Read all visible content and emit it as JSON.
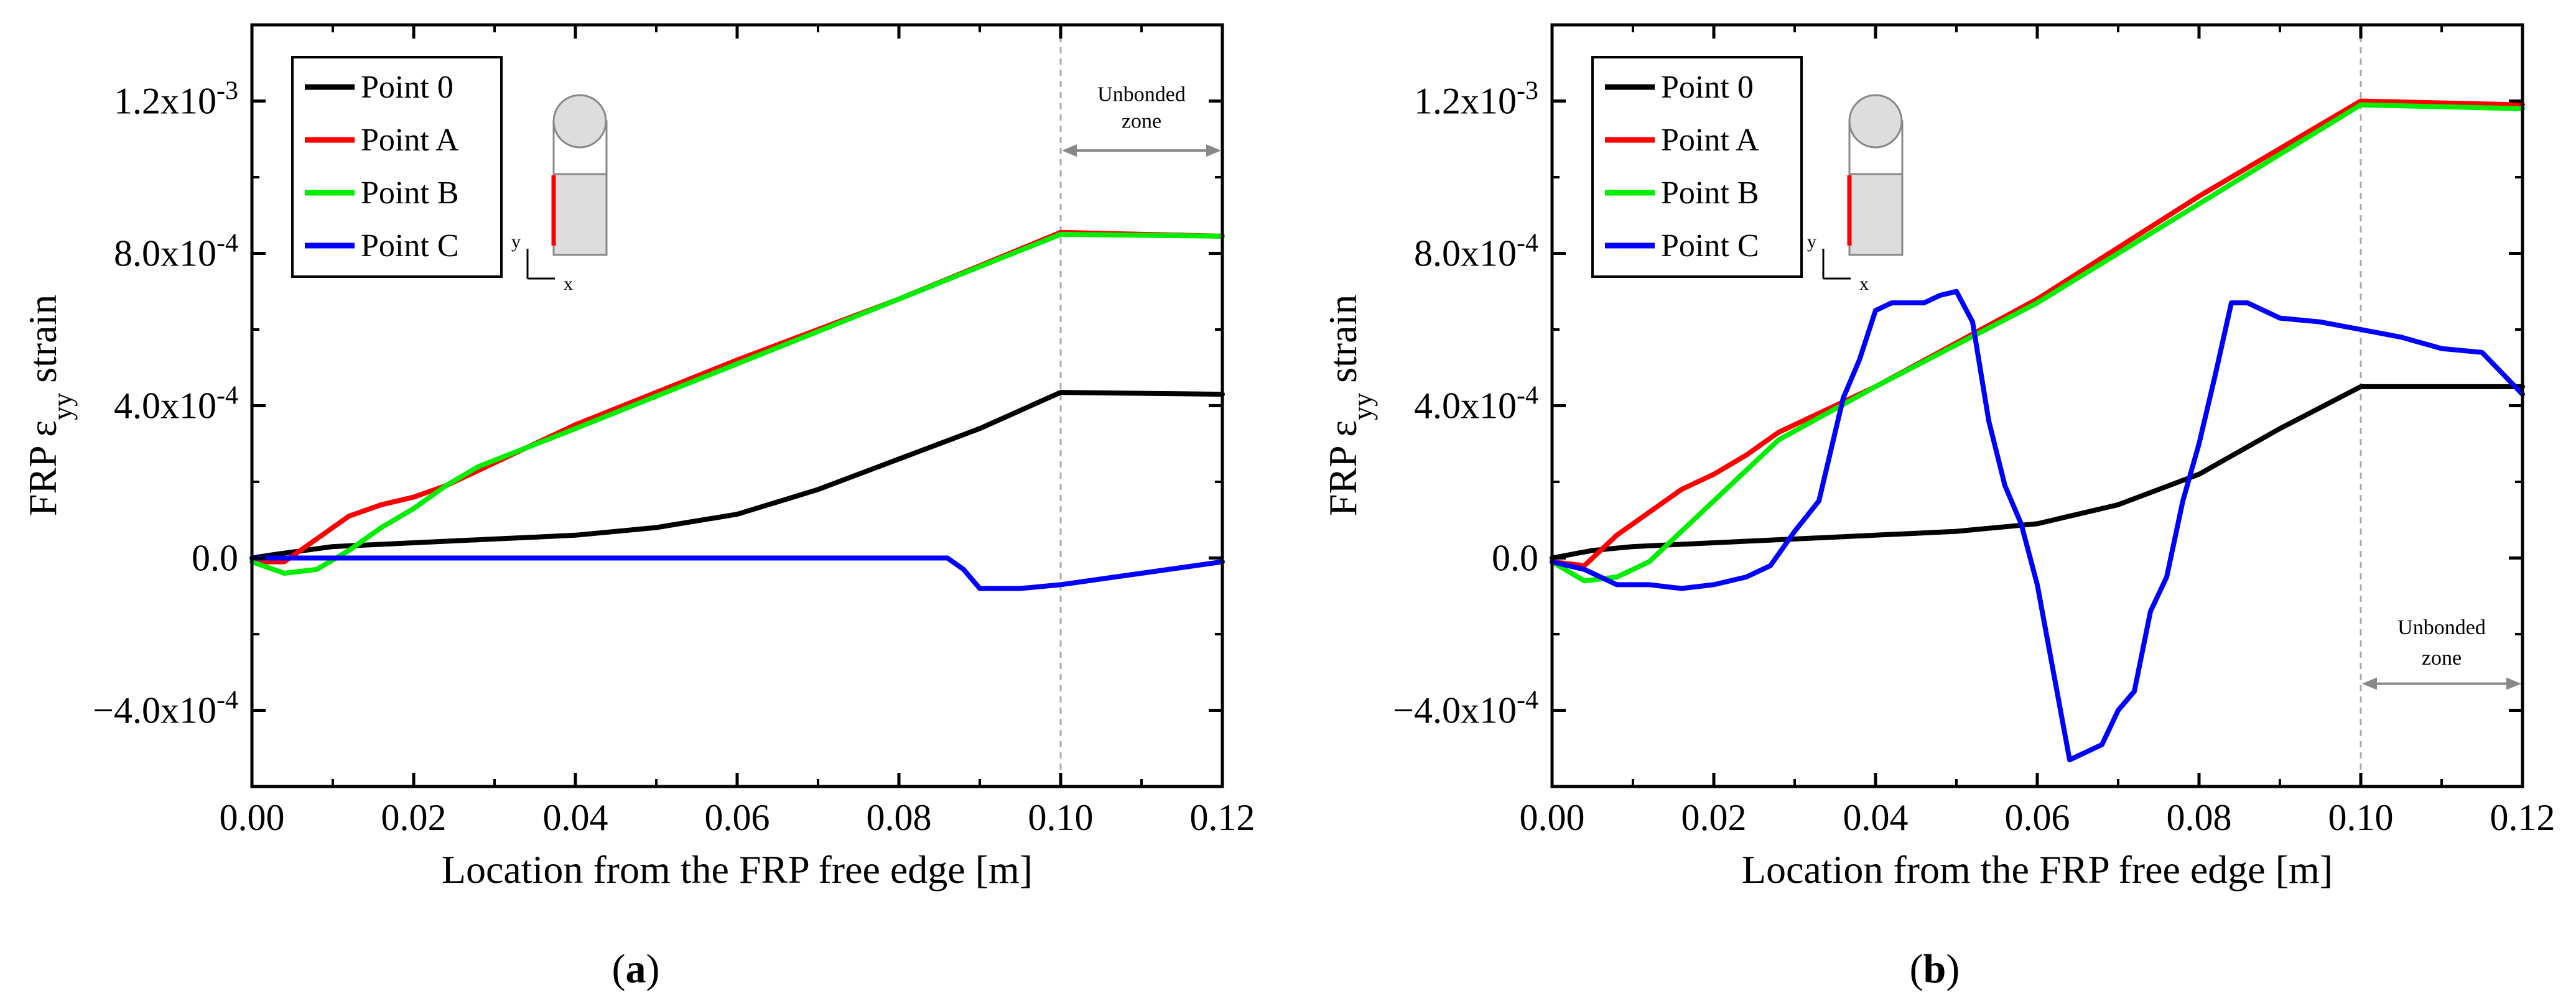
{
  "colors": {
    "point0": "#000000",
    "pointA": "#ff0000",
    "pointB": "#00ee00",
    "pointC": "#0000ff",
    "dashed": "#aaaaaa",
    "arrow": "#888888",
    "schematic_fill": "#dddddd"
  },
  "chart_data": [
    {
      "type": "line",
      "panel_label": "a",
      "xlabel": "Location from the FRP free edge [m]",
      "ylabel_prefix": "FRP ε",
      "ylabel_sub": "yy",
      "ylabel_suffix": " strain",
      "xlim": [
        0,
        0.12
      ],
      "ylim": [
        -0.0006,
        0.0014
      ],
      "xticks": [
        0.0,
        0.02,
        0.04,
        0.06,
        0.08,
        0.1,
        0.12
      ],
      "xtick_labels": [
        "0.00",
        "0.02",
        "0.04",
        "0.06",
        "0.08",
        "0.10",
        "0.12"
      ],
      "yticks": [
        -0.0004,
        0,
        0.0004,
        0.0008,
        0.0012
      ],
      "ytick_labels": [
        {
          "mant": "−4.0x10",
          "exp": "-4"
        },
        {
          "mant": "0.0",
          "exp": ""
        },
        {
          "mant": "4.0x10",
          "exp": "-4"
        },
        {
          "mant": "8.0x10",
          "exp": "-4"
        },
        {
          "mant": "1.2x10",
          "exp": "-3"
        }
      ],
      "vline_x": 0.1,
      "annotation": {
        "line1": "Unbonded",
        "line2": "zone",
        "x_from": 0.1,
        "x_to": 0.12,
        "y_text1": 0.0012,
        "y_text2": 0.00113,
        "y_arrow": 0.00107
      },
      "legend": [
        "Point 0",
        "Point A",
        "Point B",
        "Point C"
      ],
      "schematic": {
        "ax_y": "y",
        "ax_x": "x"
      },
      "series": [
        {
          "name": "Point 0",
          "key": "point0",
          "x": [
            0,
            0.003,
            0.01,
            0.02,
            0.03,
            0.04,
            0.05,
            0.06,
            0.07,
            0.08,
            0.09,
            0.1,
            0.12
          ],
          "y": [
            0,
            1e-05,
            3e-05,
            4e-05,
            5e-05,
            6e-05,
            8e-05,
            0.000115,
            0.00018,
            0.00026,
            0.00034,
            0.000435,
            0.00043
          ]
        },
        {
          "name": "Point A",
          "key": "pointA",
          "x": [
            0,
            0.004,
            0.008,
            0.012,
            0.016,
            0.02,
            0.024,
            0.028,
            0.04,
            0.06,
            0.08,
            0.1,
            0.12
          ],
          "y": [
            -1e-05,
            -1e-05,
            5e-05,
            0.00011,
            0.00014,
            0.00016,
            0.00019,
            0.00023,
            0.00035,
            0.00052,
            0.00068,
            0.000855,
            0.000845
          ]
        },
        {
          "name": "Point B",
          "key": "pointB",
          "x": [
            0,
            0.004,
            0.008,
            0.012,
            0.016,
            0.02,
            0.024,
            0.028,
            0.04,
            0.06,
            0.08,
            0.1,
            0.12
          ],
          "y": [
            -1e-05,
            -4e-05,
            -3e-05,
            2e-05,
            8e-05,
            0.00013,
            0.00019,
            0.00024,
            0.00034,
            0.00051,
            0.00068,
            0.00085,
            0.000845
          ]
        },
        {
          "name": "Point C",
          "key": "pointC",
          "x": [
            0,
            0.02,
            0.04,
            0.06,
            0.08,
            0.086,
            0.088,
            0.09,
            0.095,
            0.1,
            0.11,
            0.12
          ],
          "y": [
            0,
            0,
            0,
            0,
            0,
            0,
            -3e-05,
            -8e-05,
            -8e-05,
            -7e-05,
            -4e-05,
            -1e-05
          ]
        }
      ]
    },
    {
      "type": "line",
      "panel_label": "b",
      "xlabel": "Location from the FRP free edge [m]",
      "ylabel_prefix": "FRP ε",
      "ylabel_sub": "yy",
      "ylabel_suffix": " strain",
      "xlim": [
        0,
        0.12
      ],
      "ylim": [
        -0.0006,
        0.0014
      ],
      "xticks": [
        0.0,
        0.02,
        0.04,
        0.06,
        0.08,
        0.1,
        0.12
      ],
      "xtick_labels": [
        "0.00",
        "0.02",
        "0.04",
        "0.06",
        "0.08",
        "0.10",
        "0.12"
      ],
      "yticks": [
        -0.0004,
        0,
        0.0004,
        0.0008,
        0.0012
      ],
      "ytick_labels": [
        {
          "mant": "−4.0x10",
          "exp": "-4"
        },
        {
          "mant": "0.0",
          "exp": ""
        },
        {
          "mant": "4.0x10",
          "exp": "-4"
        },
        {
          "mant": "8.0x10",
          "exp": "-4"
        },
        {
          "mant": "1.2x10",
          "exp": "-3"
        }
      ],
      "vline_x": 0.1,
      "annotation": {
        "line1": "Unbonded",
        "line2": "zone",
        "x_from": 0.1,
        "x_to": 0.12,
        "y_text1": -0.0002,
        "y_text2": -0.00028,
        "y_arrow": -0.00033
      },
      "legend": [
        "Point 0",
        "Point A",
        "Point B",
        "Point C"
      ],
      "schematic": {
        "ax_y": "y",
        "ax_x": "x"
      },
      "series": [
        {
          "name": "Point 0",
          "key": "point0",
          "x": [
            0,
            0.005,
            0.01,
            0.02,
            0.03,
            0.04,
            0.05,
            0.06,
            0.07,
            0.08,
            0.09,
            0.1,
            0.12
          ],
          "y": [
            0,
            2e-05,
            3e-05,
            4e-05,
            5e-05,
            6e-05,
            7e-05,
            9e-05,
            0.00014,
            0.00022,
            0.00034,
            0.00045,
            0.00045
          ]
        },
        {
          "name": "Point A",
          "key": "pointA",
          "x": [
            0,
            0.004,
            0.008,
            0.012,
            0.016,
            0.02,
            0.024,
            0.028,
            0.04,
            0.06,
            0.08,
            0.1,
            0.12
          ],
          "y": [
            -1e-05,
            -2e-05,
            6e-05,
            0.00012,
            0.00018,
            0.00022,
            0.00027,
            0.00033,
            0.00045,
            0.00068,
            0.00095,
            0.0012,
            0.00119
          ]
        },
        {
          "name": "Point B",
          "key": "pointB",
          "x": [
            0,
            0.004,
            0.008,
            0.012,
            0.016,
            0.02,
            0.024,
            0.028,
            0.04,
            0.06,
            0.08,
            0.1,
            0.12
          ],
          "y": [
            -1e-05,
            -6e-05,
            -5e-05,
            -1e-05,
            7e-05,
            0.00015,
            0.00023,
            0.00031,
            0.00045,
            0.00067,
            0.00093,
            0.00119,
            0.00118
          ]
        },
        {
          "name": "Point C",
          "key": "pointC",
          "x": [
            0,
            0.004,
            0.008,
            0.012,
            0.016,
            0.02,
            0.024,
            0.027,
            0.03,
            0.033,
            0.036,
            0.038,
            0.04,
            0.042,
            0.046,
            0.048,
            0.05,
            0.052,
            0.054,
            0.056,
            0.058,
            0.06,
            0.062,
            0.064,
            0.066,
            0.068,
            0.07,
            0.072,
            0.074,
            0.076,
            0.078,
            0.08,
            0.082,
            0.084,
            0.086,
            0.09,
            0.095,
            0.1,
            0.105,
            0.11,
            0.115,
            0.12
          ],
          "y": [
            -1e-05,
            -3e-05,
            -7e-05,
            -7e-05,
            -8e-05,
            -7e-05,
            -5e-05,
            -2e-05,
            7e-05,
            0.00015,
            0.00042,
            0.00052,
            0.00065,
            0.00067,
            0.00067,
            0.00069,
            0.0007,
            0.00062,
            0.00036,
            0.00019,
            9e-05,
            -7e-05,
            -0.0003,
            -0.00053,
            -0.00051,
            -0.00049,
            -0.0004,
            -0.00035,
            -0.00014,
            -5e-05,
            0.00015,
            0.0003,
            0.00048,
            0.00067,
            0.00067,
            0.00063,
            0.00062,
            0.0006,
            0.00058,
            0.00055,
            0.00054,
            0.00043
          ]
        }
      ]
    }
  ]
}
